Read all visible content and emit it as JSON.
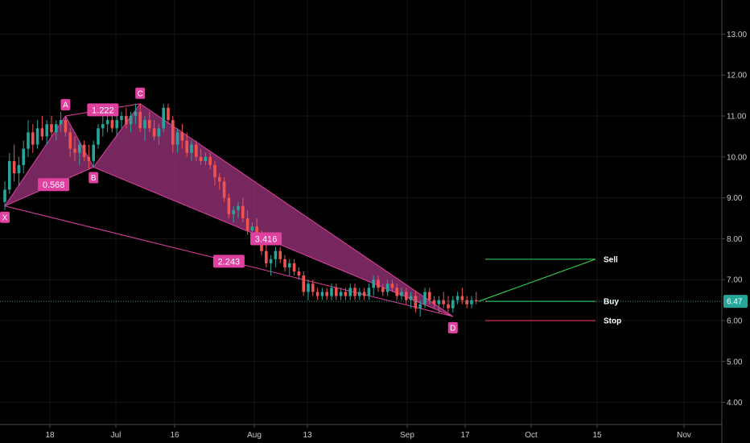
{
  "chart_data": {
    "type": "candlestick",
    "x_axis_labels": [
      "18",
      "Jul",
      "16",
      "Aug",
      "13",
      "Sep",
      "17",
      "Oct",
      "15",
      "Nov"
    ],
    "y_axis_labels": [
      "4.00",
      "5.00",
      "6.00",
      "7.00",
      "8.00",
      "9.00",
      "10.00",
      "11.00",
      "12.00",
      "13.00"
    ],
    "y_range": [
      3.25,
      13.85
    ],
    "last_price": 6.47,
    "last_price_label": "6.47",
    "colors": {
      "up": "#26a69a",
      "down": "#ef5350",
      "pattern_fill": "#8b2f6e",
      "pattern_line": "#e040a0",
      "label_bg": "#e040a0",
      "sell": "#2ec14a",
      "buy": "#2ec14a",
      "stop": "#d32f4f",
      "last_price": "#26a69a"
    },
    "pattern": {
      "points": [
        {
          "label": "X",
          "day": 0,
          "price": 8.8
        },
        {
          "label": "A",
          "day": 13,
          "price": 11.0
        },
        {
          "label": "B",
          "day": 19,
          "price": 9.75
        },
        {
          "label": "C",
          "day": 29,
          "price": 11.3
        },
        {
          "label": "D",
          "day": 96,
          "price": 6.1
        }
      ],
      "ratios": [
        {
          "value": "0.568",
          "from": "X",
          "to": "B"
        },
        {
          "value": "1.222",
          "from": "A",
          "to": "C"
        },
        {
          "value": "3.416",
          "from": "B",
          "to": "D"
        },
        {
          "value": "2.243",
          "from": "X",
          "to": "D"
        }
      ]
    },
    "trade_levels": [
      {
        "name": "Sell",
        "price": 7.5
      },
      {
        "name": "Buy",
        "price": 6.47
      },
      {
        "name": "Stop",
        "price": 6.0
      }
    ],
    "candles": [
      [
        8.9,
        9.4,
        8.7,
        9.2
      ],
      [
        9.2,
        10.1,
        9.1,
        9.9
      ],
      [
        9.9,
        10.3,
        9.4,
        9.6
      ],
      [
        9.6,
        10.0,
        9.3,
        9.8
      ],
      [
        9.8,
        10.4,
        9.6,
        10.2
      ],
      [
        10.2,
        10.9,
        10.0,
        10.6
      ],
      [
        10.6,
        10.8,
        10.1,
        10.3
      ],
      [
        10.3,
        10.9,
        10.2,
        10.7
      ],
      [
        10.7,
        11.0,
        10.4,
        10.5
      ],
      [
        10.5,
        10.9,
        10.3,
        10.8
      ],
      [
        10.8,
        11.0,
        10.5,
        10.6
      ],
      [
        10.6,
        10.9,
        10.4,
        10.8
      ],
      [
        10.8,
        11.1,
        10.6,
        10.9
      ],
      [
        10.9,
        11.0,
        10.5,
        10.6
      ],
      [
        10.6,
        10.7,
        10.0,
        10.2
      ],
      [
        10.2,
        10.5,
        9.9,
        10.1
      ],
      [
        10.1,
        10.4,
        9.8,
        10.3
      ],
      [
        10.3,
        10.4,
        9.9,
        10.0
      ],
      [
        10.0,
        10.3,
        9.7,
        9.9
      ],
      [
        9.9,
        10.4,
        9.75,
        10.3
      ],
      [
        10.3,
        10.8,
        10.2,
        10.7
      ],
      [
        10.7,
        11.0,
        10.5,
        10.8
      ],
      [
        10.8,
        11.1,
        10.6,
        10.9
      ],
      [
        10.9,
        11.0,
        10.6,
        10.7
      ],
      [
        10.7,
        11.0,
        10.5,
        10.9
      ],
      [
        10.9,
        11.1,
        10.7,
        11.0
      ],
      [
        11.0,
        11.2,
        10.7,
        10.8
      ],
      [
        10.8,
        11.1,
        10.6,
        11.0
      ],
      [
        11.0,
        11.3,
        10.8,
        11.1
      ],
      [
        11.1,
        11.3,
        10.6,
        10.7
      ],
      [
        10.7,
        11.0,
        10.4,
        10.9
      ],
      [
        10.9,
        11.1,
        10.6,
        10.7
      ],
      [
        10.7,
        10.9,
        10.4,
        10.5
      ],
      [
        10.5,
        10.8,
        10.3,
        10.7
      ],
      [
        10.7,
        11.3,
        10.6,
        11.2
      ],
      [
        11.2,
        11.3,
        10.8,
        10.9
      ],
      [
        10.9,
        11.0,
        10.1,
        10.3
      ],
      [
        10.3,
        10.7,
        10.1,
        10.6
      ],
      [
        10.6,
        10.8,
        10.2,
        10.4
      ],
      [
        10.4,
        10.6,
        10.0,
        10.1
      ],
      [
        10.1,
        10.4,
        9.9,
        10.3
      ],
      [
        10.3,
        10.4,
        9.9,
        10.0
      ],
      [
        10.0,
        10.2,
        9.8,
        9.9
      ],
      [
        9.9,
        10.1,
        9.8,
        10.0
      ],
      [
        10.0,
        10.1,
        9.7,
        9.8
      ],
      [
        9.8,
        9.9,
        9.3,
        9.5
      ],
      [
        9.5,
        9.6,
        9.2,
        9.4
      ],
      [
        9.4,
        9.5,
        8.9,
        9.0
      ],
      [
        9.0,
        9.1,
        8.5,
        8.6
      ],
      [
        8.6,
        8.8,
        8.4,
        8.7
      ],
      [
        8.7,
        8.9,
        8.5,
        8.8
      ],
      [
        8.8,
        9.0,
        8.4,
        8.5
      ],
      [
        8.5,
        8.7,
        8.1,
        8.2
      ],
      [
        8.2,
        8.4,
        7.9,
        8.3
      ],
      [
        8.3,
        8.5,
        7.9,
        8.0
      ],
      [
        8.0,
        8.2,
        7.6,
        7.7
      ],
      [
        7.7,
        7.9,
        7.3,
        7.4
      ],
      [
        7.4,
        7.6,
        7.1,
        7.5
      ],
      [
        7.5,
        7.8,
        7.3,
        7.7
      ],
      [
        7.7,
        7.8,
        7.4,
        7.5
      ],
      [
        7.5,
        7.6,
        7.2,
        7.3
      ],
      [
        7.3,
        7.5,
        7.1,
        7.4
      ],
      [
        7.4,
        7.5,
        7.1,
        7.2
      ],
      [
        7.2,
        7.3,
        7.0,
        7.1
      ],
      [
        7.1,
        7.2,
        6.6,
        6.7
      ],
      [
        6.7,
        7.0,
        6.5,
        6.9
      ],
      [
        6.9,
        7.0,
        6.6,
        6.7
      ],
      [
        6.7,
        6.8,
        6.5,
        6.6
      ],
      [
        6.6,
        6.8,
        6.5,
        6.7
      ],
      [
        6.7,
        6.8,
        6.5,
        6.6
      ],
      [
        6.6,
        6.9,
        6.5,
        6.8
      ],
      [
        6.8,
        6.9,
        6.5,
        6.6
      ],
      [
        6.6,
        6.8,
        6.5,
        6.7
      ],
      [
        6.7,
        6.8,
        6.5,
        6.6
      ],
      [
        6.6,
        6.9,
        6.5,
        6.8
      ],
      [
        6.8,
        6.9,
        6.5,
        6.6
      ],
      [
        6.6,
        6.8,
        6.5,
        6.7
      ],
      [
        6.7,
        6.8,
        6.5,
        6.6
      ],
      [
        6.6,
        6.9,
        6.5,
        6.8
      ],
      [
        6.8,
        7.1,
        6.6,
        7.0
      ],
      [
        7.0,
        7.1,
        6.7,
        6.8
      ],
      [
        6.8,
        6.9,
        6.6,
        6.7
      ],
      [
        6.7,
        7.0,
        6.6,
        6.9
      ],
      [
        6.9,
        7.0,
        6.7,
        6.8
      ],
      [
        6.8,
        6.9,
        6.5,
        6.6
      ],
      [
        6.6,
        6.8,
        6.5,
        6.7
      ],
      [
        6.7,
        6.8,
        6.4,
        6.5
      ],
      [
        6.5,
        6.7,
        6.3,
        6.6
      ],
      [
        6.6,
        6.7,
        6.2,
        6.3
      ],
      [
        6.3,
        6.5,
        6.1,
        6.4
      ],
      [
        6.4,
        6.8,
        6.3,
        6.7
      ],
      [
        6.7,
        6.8,
        6.4,
        6.5
      ],
      [
        6.5,
        6.6,
        6.3,
        6.4
      ],
      [
        6.4,
        6.6,
        6.2,
        6.5
      ],
      [
        6.5,
        6.7,
        6.3,
        6.4
      ],
      [
        6.4,
        6.6,
        6.2,
        6.3
      ],
      [
        6.3,
        6.6,
        6.2,
        6.5
      ],
      [
        6.5,
        6.7,
        6.4,
        6.6
      ],
      [
        6.6,
        6.8,
        6.4,
        6.5
      ],
      [
        6.5,
        6.6,
        6.3,
        6.4
      ],
      [
        6.4,
        6.6,
        6.3,
        6.5
      ],
      [
        6.5,
        6.7,
        6.4,
        6.47
      ]
    ]
  }
}
